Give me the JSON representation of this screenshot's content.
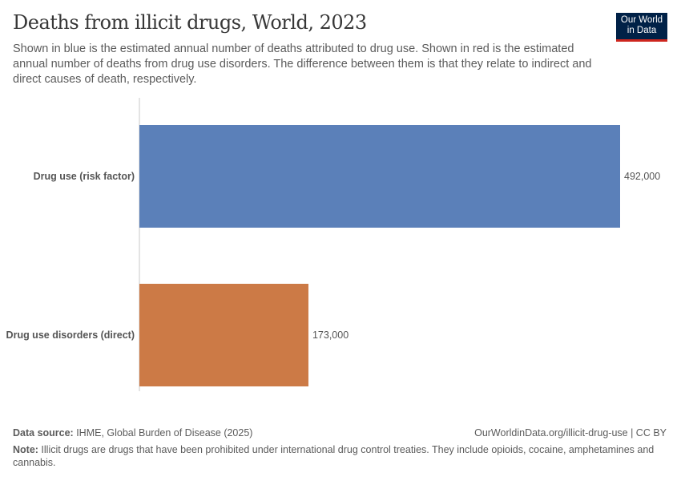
{
  "header": {
    "title": "Deaths from illicit drugs, World, 2023",
    "subtitle": "Shown in blue is the estimated annual number of deaths attributed to drug use. Shown in red is the estimated annual number of deaths from drug use disorders. The difference between them is that they relate to indirect and direct causes of death, respectively.",
    "logo_line1": "Our World",
    "logo_line2": "in Data"
  },
  "chart_data": {
    "type": "bar",
    "orientation": "horizontal",
    "categories": [
      "Drug use (risk factor)",
      "Drug use disorders (direct)"
    ],
    "values": [
      492000,
      173000
    ],
    "data_labels": [
      "492,000",
      "173,000"
    ],
    "colors": [
      "#5b80b9",
      "#cc7a46"
    ],
    "grid": false
  },
  "footer": {
    "source_label": "Data source:",
    "source_text": " IHME, Global Burden of Disease (2025)",
    "url": "OurWorldinData.org/illicit-drug-use | CC BY",
    "note_label": "Note:",
    "note_text": " Illicit drugs are drugs that have been prohibited under international drug control treaties. They include opioids, cocaine, amphetamines and cannabis."
  }
}
